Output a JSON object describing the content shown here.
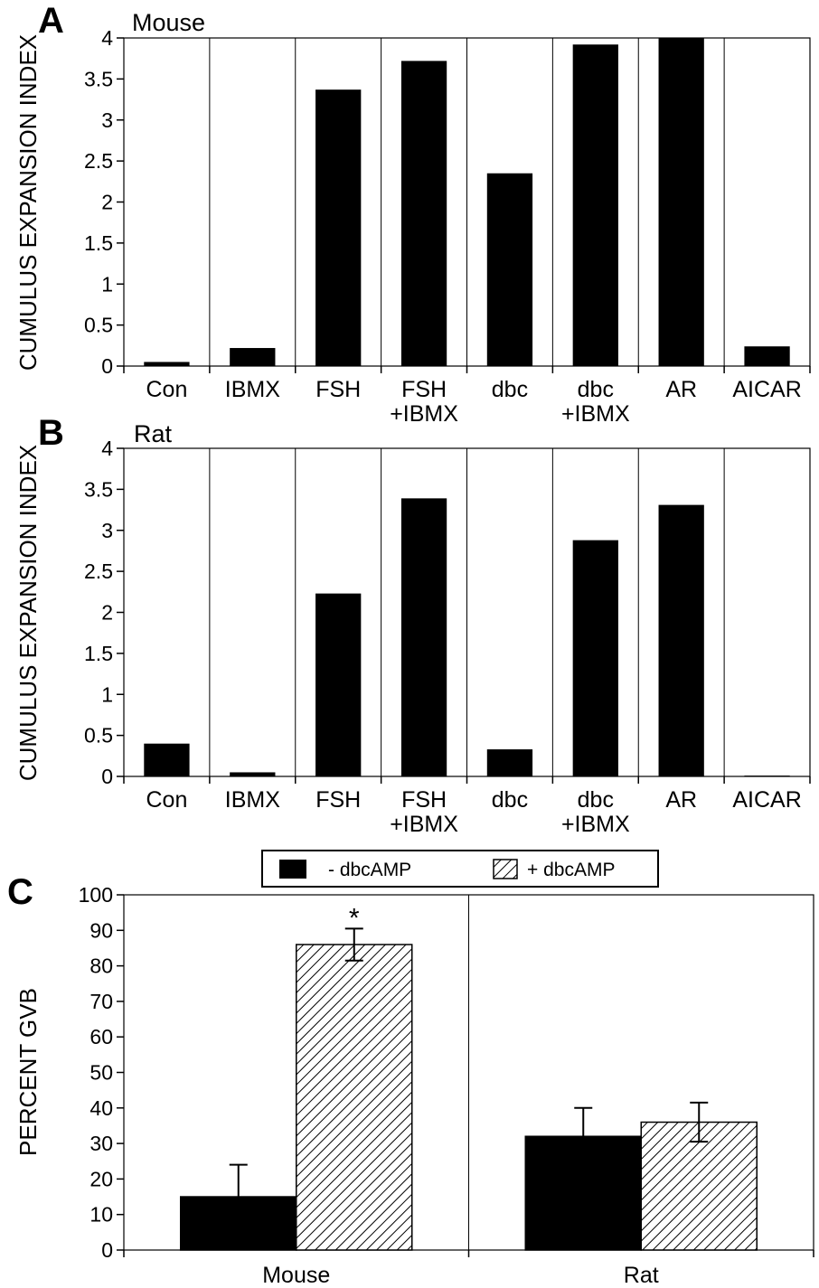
{
  "chart_data": [
    {
      "panel": "A",
      "type": "bar",
      "title": "Mouse",
      "ylabel": "CUMULUS EXPANSION INDEX",
      "ylim": [
        0,
        4
      ],
      "yticks": [
        "0",
        "0.5",
        "1",
        "1.5",
        "2",
        "2.5",
        "3",
        "3.5",
        "4"
      ],
      "categories": [
        [
          "Con"
        ],
        [
          "IBMX"
        ],
        [
          "FSH"
        ],
        [
          "FSH",
          "+IBMX"
        ],
        [
          "dbc"
        ],
        [
          "dbc",
          "+IBMX"
        ],
        [
          "AR"
        ],
        [
          "AICAR"
        ]
      ],
      "values": [
        0.05,
        0.22,
        3.37,
        3.72,
        2.35,
        3.92,
        4.0,
        0.24
      ],
      "colors": {
        "bar": "#000000"
      }
    },
    {
      "panel": "B",
      "type": "bar",
      "title": "Rat",
      "ylabel": "CUMULUS EXPANSION INDEX",
      "ylim": [
        0,
        4
      ],
      "yticks": [
        "0",
        "0.5",
        "1",
        "1.5",
        "2",
        "2.5",
        "3",
        "3.5",
        "4"
      ],
      "categories": [
        [
          "Con"
        ],
        [
          "IBMX"
        ],
        [
          "FSH"
        ],
        [
          "FSH",
          "+IBMX"
        ],
        [
          "dbc"
        ],
        [
          "dbc",
          "+IBMX"
        ],
        [
          "AR"
        ],
        [
          "AICAR"
        ]
      ],
      "values": [
        0.4,
        0.05,
        2.23,
        3.39,
        0.33,
        2.88,
        3.31,
        0.01
      ],
      "colors": {
        "bar": "#000000"
      }
    },
    {
      "panel": "C",
      "type": "bar",
      "title": "",
      "ylabel": "PERCENT GVB",
      "ylim": [
        0,
        100
      ],
      "yticks": [
        "0",
        "10",
        "20",
        "30",
        "40",
        "50",
        "60",
        "70",
        "80",
        "90",
        "100"
      ],
      "categories": [
        "Mouse",
        "Rat"
      ],
      "legend_position": "top-center",
      "series": [
        {
          "name": "- dbcAMP",
          "fill": "solid",
          "values": [
            15,
            32
          ],
          "errors": [
            9,
            8
          ]
        },
        {
          "name": "+ dbcAMP",
          "fill": "hatched",
          "values": [
            86,
            36
          ],
          "errors": [
            4.5,
            5.5
          ]
        }
      ],
      "annotations": [
        {
          "text": "*",
          "category": "Mouse",
          "series": "+ dbcAMP"
        }
      ]
    }
  ]
}
